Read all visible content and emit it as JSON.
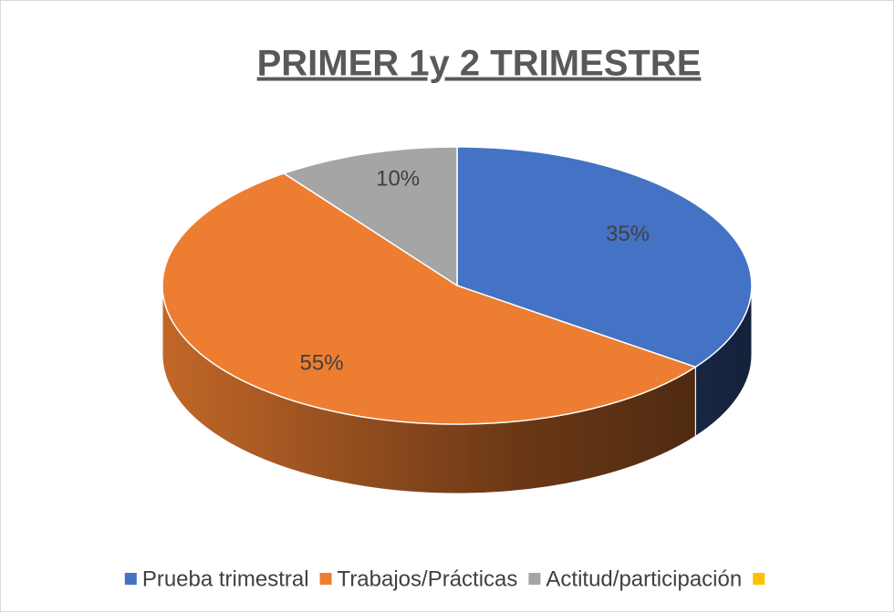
{
  "chart_data": {
    "type": "pie3d",
    "title": "PRIMER 1y 2 TRIMESTRE",
    "categories": [
      "Prueba trimestral",
      "Trabajos/Prácticas",
      "Actitud/participación",
      null
    ],
    "values": [
      35,
      55,
      10,
      0
    ],
    "value_labels": [
      "35%",
      "55%",
      "10%",
      null
    ],
    "colors": [
      "#4472c4",
      "#ed7d31",
      "#a5a5a5",
      "#ffc000"
    ],
    "legend": "bottom"
  }
}
